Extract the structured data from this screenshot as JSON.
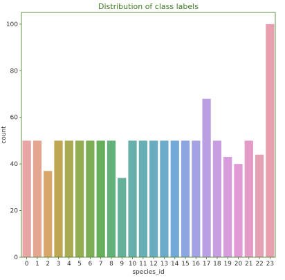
{
  "chart_data": {
    "type": "bar",
    "title": "Distribution of class labels",
    "xlabel": "species_id",
    "ylabel": "count",
    "categories": [
      "0",
      "1",
      "2",
      "3",
      "4",
      "5",
      "6",
      "7",
      "8",
      "9",
      "10",
      "11",
      "12",
      "13",
      "14",
      "15",
      "16",
      "17",
      "18",
      "19",
      "20",
      "21",
      "22",
      "23"
    ],
    "values": [
      50,
      50,
      37,
      50,
      50,
      50,
      50,
      50,
      50,
      34,
      50,
      50,
      50,
      50,
      50,
      50,
      50,
      68,
      50,
      43,
      40,
      50,
      44,
      100
    ],
    "ylim": [
      0,
      105
    ],
    "yticks": [
      0,
      20,
      40,
      60,
      80,
      100
    ],
    "grid": false,
    "colors": [
      "#e8a5a5",
      "#e3a690",
      "#d8a668",
      "#bfa653",
      "#a8ab52",
      "#93ad52",
      "#7dae56",
      "#66b05c",
      "#62b07a",
      "#64b098",
      "#66afaa",
      "#68aeb5",
      "#6aacbf",
      "#6dabca",
      "#73a9d6",
      "#8ba6e0",
      "#a3a3e3",
      "#baa0e2",
      "#c99ee0",
      "#d69cdc",
      "#e29ad7",
      "#e39cc8",
      "#e5a2b5",
      "#e8a0ae"
    ],
    "axis_color": "#3d7a1f",
    "text_color": "#333333"
  }
}
